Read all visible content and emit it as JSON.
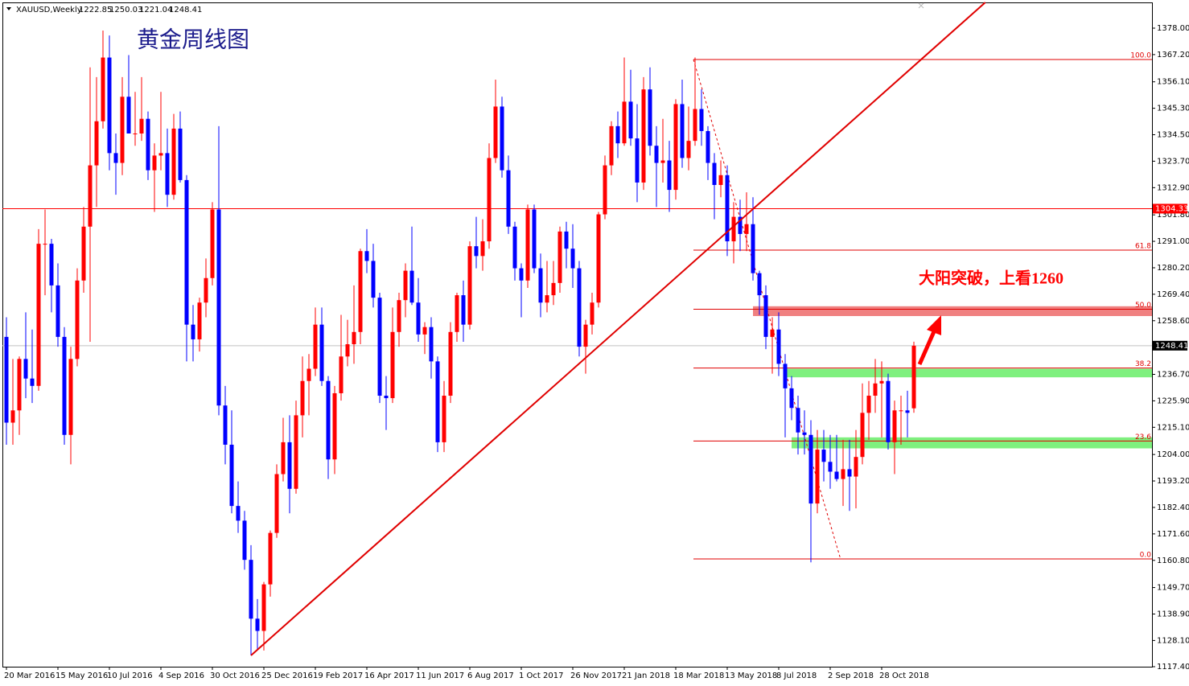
{
  "chart_data": {
    "type": "candlestick",
    "symbol": "XAUUSD,Weekly",
    "title": "黄金周线图",
    "annotation": "大阳突破，上看1260",
    "up_color": "#ff0000",
    "down_color": "#0000ff",
    "ylim": [
      1117.4,
      1388.5
    ],
    "xlim": [
      -0.625,
      178
    ],
    "yticks": [
      {
        "value": 1378,
        "label": "1378.00"
      },
      {
        "value": 1367.2,
        "label": "1367.20"
      },
      {
        "value": 1356.1,
        "label": "1356.10"
      },
      {
        "value": 1345.3,
        "label": "1345.30"
      },
      {
        "value": 1334.5,
        "label": "1334.50"
      },
      {
        "value": 1323.7,
        "label": "1323.70"
      },
      {
        "value": 1312.9,
        "label": "1312.90"
      },
      {
        "value": 1301.8,
        "label": "1301.80"
      },
      {
        "value": 1291,
        "label": "1291.00"
      },
      {
        "value": 1280.2,
        "label": "1280.20"
      },
      {
        "value": 1269.4,
        "label": "1269.40"
      },
      {
        "value": 1258.6,
        "label": "1258.60"
      },
      {
        "value": 1236.7,
        "label": "1236.70"
      },
      {
        "value": 1225.9,
        "label": "1225.90"
      },
      {
        "value": 1215.1,
        "label": "1215.10"
      },
      {
        "value": 1204,
        "label": "1204.00"
      },
      {
        "value": 1193.2,
        "label": "1193.20"
      },
      {
        "value": 1182.4,
        "label": "1182.40"
      },
      {
        "value": 1171.6,
        "label": "1171.60"
      },
      {
        "value": 1160.8,
        "label": "1160.80"
      },
      {
        "value": 1149.7,
        "label": "1149.70"
      },
      {
        "value": 1138.9,
        "label": "1138.90"
      },
      {
        "value": 1128.1,
        "label": "1128.10"
      },
      {
        "value": 1117.4,
        "label": "1117.40"
      }
    ],
    "price_lines": [
      {
        "value": 1304.33,
        "color": "#ff0000",
        "box": "#ff0000"
      },
      {
        "value": 1248.41,
        "color": "#c0c0c0",
        "box": "#000000"
      }
    ],
    "categories": [
      "20 Mar 2016",
      null,
      null,
      null,
      null,
      null,
      null,
      null,
      "15 May 2016",
      null,
      null,
      null,
      null,
      null,
      null,
      null,
      "10 Jul 2016",
      null,
      null,
      null,
      null,
      null,
      null,
      null,
      "4 Sep 2016",
      null,
      null,
      null,
      null,
      null,
      null,
      null,
      "30 Oct 2016",
      null,
      null,
      null,
      null,
      null,
      null,
      null,
      "25 Dec 2016",
      null,
      null,
      null,
      null,
      null,
      null,
      null,
      "19 Feb 2017",
      null,
      null,
      null,
      null,
      null,
      null,
      null,
      "16 Apr 2017",
      null,
      null,
      null,
      null,
      null,
      null,
      null,
      "11 Jun 2017",
      null,
      null,
      null,
      null,
      null,
      null,
      null,
      "6 Aug 2017",
      null,
      null,
      null,
      null,
      null,
      null,
      null,
      "1 Oct 2017",
      null,
      null,
      null,
      null,
      null,
      null,
      null,
      "26 Nov 2017",
      null,
      null,
      null,
      null,
      null,
      null,
      null,
      "21 Jan 2018",
      null,
      null,
      null,
      null,
      null,
      null,
      null,
      "18 Mar 2018",
      null,
      null,
      null,
      null,
      null,
      null,
      null,
      "13 May 2018",
      null,
      null,
      null,
      null,
      null,
      null,
      null,
      "8 Jul 2018",
      null,
      null,
      null,
      null,
      null,
      null,
      null,
      "2 Sep 2018",
      null,
      null,
      null,
      null,
      null,
      null,
      null,
      "28 Oct 2018",
      null,
      null,
      null,
      null,
      null
    ],
    "ohlc": [
      [
        1252,
        1260,
        1208,
        1217
      ],
      [
        1217,
        1243,
        1208,
        1222
      ],
      [
        1222,
        1244,
        1212,
        1243
      ],
      [
        1243,
        1262,
        1227,
        1235
      ],
      [
        1235,
        1255,
        1225,
        1232
      ],
      [
        1232,
        1296,
        1230,
        1290
      ],
      [
        1290,
        1304,
        1269,
        1290
      ],
      [
        1290,
        1292,
        1262,
        1273
      ],
      [
        1273,
        1282,
        1248,
        1252
      ],
      [
        1252,
        1256,
        1208,
        1212
      ],
      [
        1212,
        1248,
        1200,
        1243
      ],
      [
        1243,
        1280,
        1240,
        1275
      ],
      [
        1275,
        1305,
        1270,
        1297
      ],
      [
        1297,
        1362,
        1250,
        1322
      ],
      [
        1322,
        1358,
        1305,
        1340
      ],
      [
        1340,
        1377,
        1337,
        1366
      ],
      [
        1366,
        1375,
        1320,
        1327
      ],
      [
        1327,
        1335,
        1310,
        1323
      ],
      [
        1323,
        1358,
        1318,
        1350
      ],
      [
        1350,
        1367,
        1335,
        1335
      ],
      [
        1335,
        1352,
        1330,
        1335
      ],
      [
        1335,
        1358,
        1332,
        1341
      ],
      [
        1341,
        1344,
        1316,
        1320
      ],
      [
        1320,
        1331,
        1303,
        1326
      ],
      [
        1326,
        1352,
        1320,
        1327
      ],
      [
        1327,
        1337,
        1305,
        1310
      ],
      [
        1310,
        1343,
        1308,
        1337
      ],
      [
        1337,
        1344,
        1315,
        1316
      ],
      [
        1316,
        1318,
        1242,
        1257
      ],
      [
        1257,
        1265,
        1242,
        1251
      ],
      [
        1251,
        1268,
        1246,
        1266
      ],
      [
        1266,
        1284,
        1260,
        1276
      ],
      [
        1276,
        1307,
        1273,
        1304
      ],
      [
        1304,
        1338,
        1220,
        1224
      ],
      [
        1224,
        1232,
        1200,
        1208
      ],
      [
        1208,
        1222,
        1180,
        1183
      ],
      [
        1183,
        1193,
        1172,
        1177
      ],
      [
        1177,
        1181,
        1157,
        1161
      ],
      [
        1161,
        1167,
        1122,
        1137
      ],
      [
        1137,
        1145,
        1124,
        1132
      ],
      [
        1132,
        1152,
        1124,
        1151
      ],
      [
        1151,
        1173,
        1146,
        1172
      ],
      [
        1172,
        1200,
        1170,
        1196
      ],
      [
        1196,
        1219,
        1193,
        1209
      ],
      [
        1209,
        1220,
        1180,
        1190
      ],
      [
        1190,
        1226,
        1188,
        1220
      ],
      [
        1220,
        1244,
        1211,
        1234
      ],
      [
        1234,
        1245,
        1220,
        1239
      ],
      [
        1239,
        1264,
        1236,
        1257
      ],
      [
        1257,
        1264,
        1232,
        1234
      ],
      [
        1234,
        1236,
        1194,
        1202
      ],
      [
        1202,
        1232,
        1196,
        1229
      ],
      [
        1229,
        1261,
        1226,
        1244
      ],
      [
        1244,
        1259,
        1240,
        1249
      ],
      [
        1249,
        1273,
        1241,
        1254
      ],
      [
        1254,
        1288,
        1249,
        1287
      ],
      [
        1287,
        1296,
        1278,
        1283
      ],
      [
        1283,
        1290,
        1264,
        1268
      ],
      [
        1268,
        1270,
        1225,
        1228
      ],
      [
        1228,
        1236,
        1214,
        1227
      ],
      [
        1227,
        1264,
        1225,
        1254
      ],
      [
        1254,
        1270,
        1248,
        1267
      ],
      [
        1267,
        1282,
        1260,
        1279
      ],
      [
        1279,
        1297,
        1265,
        1266
      ],
      [
        1266,
        1276,
        1250,
        1253
      ],
      [
        1253,
        1258,
        1245,
        1256
      ],
      [
        1256,
        1260,
        1235,
        1242
      ],
      [
        1242,
        1244,
        1205,
        1209
      ],
      [
        1209,
        1234,
        1205,
        1228
      ],
      [
        1228,
        1258,
        1225,
        1254
      ],
      [
        1254,
        1270,
        1250,
        1269
      ],
      [
        1269,
        1275,
        1250,
        1257
      ],
      [
        1257,
        1291,
        1255,
        1289
      ],
      [
        1289,
        1301,
        1280,
        1285
      ],
      [
        1285,
        1300,
        1279,
        1291
      ],
      [
        1291,
        1331,
        1288,
        1325
      ],
      [
        1325,
        1357,
        1323,
        1346
      ],
      [
        1346,
        1350,
        1317,
        1320
      ],
      [
        1320,
        1326,
        1294,
        1297
      ],
      [
        1297,
        1299,
        1275,
        1280
      ],
      [
        1280,
        1282,
        1260,
        1275
      ],
      [
        1275,
        1306,
        1272,
        1304
      ],
      [
        1304,
        1306,
        1278,
        1280
      ],
      [
        1280,
        1286,
        1260,
        1266
      ],
      [
        1266,
        1283,
        1262,
        1269
      ],
      [
        1269,
        1283,
        1265,
        1274
      ],
      [
        1274,
        1297,
        1270,
        1295
      ],
      [
        1295,
        1299,
        1280,
        1288
      ],
      [
        1288,
        1298,
        1272,
        1280
      ],
      [
        1280,
        1283,
        1244,
        1248
      ],
      [
        1248,
        1259,
        1237,
        1257
      ],
      [
        1257,
        1270,
        1253,
        1266
      ],
      [
        1266,
        1303,
        1264,
        1302
      ],
      [
        1302,
        1326,
        1300,
        1322
      ],
      [
        1322,
        1340,
        1318,
        1338
      ],
      [
        1338,
        1344,
        1325,
        1331
      ],
      [
        1331,
        1366,
        1330,
        1348
      ],
      [
        1348,
        1361,
        1330,
        1333
      ],
      [
        1333,
        1347,
        1307,
        1315
      ],
      [
        1315,
        1358,
        1312,
        1353
      ],
      [
        1353,
        1362,
        1326,
        1330
      ],
      [
        1330,
        1338,
        1305,
        1323
      ],
      [
        1323,
        1341,
        1315,
        1324
      ],
      [
        1324,
        1332,
        1303,
        1312
      ],
      [
        1312,
        1349,
        1308,
        1347
      ],
      [
        1347,
        1357,
        1321,
        1325
      ],
      [
        1325,
        1346,
        1320,
        1332
      ],
      [
        1332,
        1366,
        1330,
        1345
      ],
      [
        1345,
        1353,
        1330,
        1336
      ],
      [
        1336,
        1338,
        1316,
        1323
      ],
      [
        1323,
        1327,
        1300,
        1314
      ],
      [
        1314,
        1324,
        1309,
        1318
      ],
      [
        1318,
        1322,
        1285,
        1291
      ],
      [
        1291,
        1307,
        1282,
        1301
      ],
      [
        1301,
        1308,
        1287,
        1294
      ],
      [
        1294,
        1311,
        1287,
        1298
      ],
      [
        1298,
        1309,
        1275,
        1278
      ],
      [
        1278,
        1279,
        1261,
        1269
      ],
      [
        1269,
        1273,
        1247,
        1252
      ],
      [
        1252,
        1260,
        1237,
        1255
      ],
      [
        1255,
        1262,
        1236,
        1241
      ],
      [
        1241,
        1245,
        1211,
        1231
      ],
      [
        1231,
        1236,
        1218,
        1223
      ],
      [
        1223,
        1228,
        1204,
        1213
      ],
      [
        1213,
        1222,
        1204,
        1212
      ],
      [
        1212,
        1218,
        1160,
        1184
      ],
      [
        1184,
        1214,
        1180,
        1206
      ],
      [
        1206,
        1214,
        1193,
        1201
      ],
      [
        1201,
        1212,
        1190,
        1197
      ],
      [
        1197,
        1212,
        1193,
        1194
      ],
      [
        1194,
        1210,
        1183,
        1198
      ],
      [
        1198,
        1210,
        1181,
        1195
      ],
      [
        1195,
        1214,
        1182,
        1203
      ],
      [
        1203,
        1233,
        1200,
        1221
      ],
      [
        1221,
        1234,
        1210,
        1228
      ],
      [
        1228,
        1243,
        1221,
        1233
      ],
      [
        1233,
        1242,
        1211,
        1234
      ],
      [
        1234,
        1237,
        1206,
        1209
      ],
      [
        1209,
        1226,
        1196,
        1222
      ],
      [
        1222,
        1228,
        1208,
        1222
      ],
      [
        1222,
        1230,
        1211,
        1221
      ],
      [
        1222.85,
        1250.03,
        1221.04,
        1248.41
      ]
    ],
    "fib": {
      "start": 106.75,
      "trend": {
        "from": [
          106.75,
          1365.2
        ],
        "to": [
          129.6,
          1161.4
        ]
      },
      "levels": [
        {
          "label": "100.0",
          "price": 1365.2
        },
        {
          "label": "61.8",
          "price": 1287.4
        },
        {
          "label": "50.0",
          "price": 1263.3
        },
        {
          "label": "38.2",
          "price": 1239.3
        },
        {
          "label": "23.6",
          "price": 1209.5
        },
        {
          "label": "0.0",
          "price": 1161.4
        }
      ]
    },
    "zones": [
      {
        "start": 116,
        "low": 1260.5,
        "high": 1264.5,
        "color": "#f08080"
      },
      {
        "start": 121,
        "low": 1235.5,
        "high": 1239,
        "color": "#7ef07e"
      },
      {
        "start": 122,
        "low": 1206.5,
        "high": 1211,
        "color": "#7ef07e"
      }
    ],
    "trend_lines": [
      {
        "from": [
          38,
          1122
        ],
        "to": [
          152.1,
          1388.5
        ],
        "color": "#e00000"
      }
    ]
  }
}
